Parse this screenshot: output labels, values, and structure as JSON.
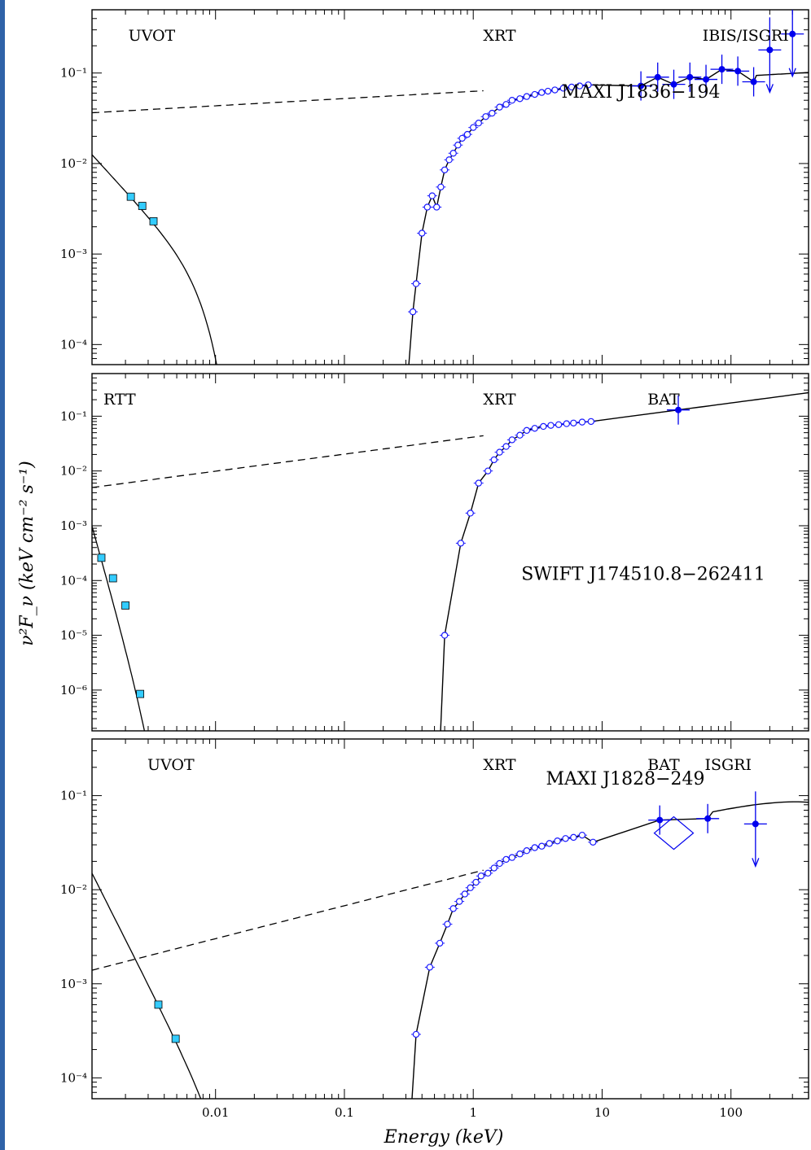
{
  "chart_data": {
    "type": "scatter",
    "xlabel": "Energy (keV)",
    "ylabel": "ν²F_ν (keV cm⁻² s⁻¹)",
    "xscale": "log",
    "yscale": "log",
    "xlim": [
      0.0011,
      400
    ],
    "x_ticks": [
      0.01,
      0.1,
      1,
      10,
      100
    ],
    "x_tick_labels": [
      "0.01",
      "0.1",
      "1",
      "10",
      "100"
    ],
    "colors": {
      "optical": "#33ccff",
      "xrt": "#1a1aff",
      "hard": "#0000ee",
      "model": "#000000",
      "sidebar": "#2f62a8"
    },
    "panels": [
      {
        "source": "MAXI J1836−194",
        "ylim": [
          6e-05,
          0.5
        ],
        "y_ticks": [
          0.1,
          0.01,
          0.001,
          0.0001
        ],
        "y_tick_labels": [
          "10⁻¹",
          "10⁻²",
          "10⁻³",
          "10⁻⁴"
        ],
        "instruments": [
          "UVOT",
          "XRT",
          "IBIS/ISGRI"
        ],
        "series": [
          {
            "name": "UVOT",
            "kind": "optical",
            "x": [
              0.0022,
              0.0027,
              0.0033
            ],
            "y": [
              0.0043,
              0.0034,
              0.0023
            ]
          },
          {
            "name": "XRT",
            "kind": "xrt",
            "x": [
              0.34,
              0.36,
              0.4,
              0.44,
              0.48,
              0.52,
              0.56,
              0.6,
              0.65,
              0.7,
              0.76,
              0.82,
              0.9,
              1.0,
              1.1,
              1.25,
              1.4,
              1.6,
              1.8,
              2.0,
              2.3,
              2.6,
              3.0,
              3.4,
              3.8,
              4.3,
              5.0,
              5.8,
              6.7,
              7.8
            ],
            "y": [
              0.00023,
              0.00047,
              0.0017,
              0.0033,
              0.0044,
              0.0033,
              0.0055,
              0.0085,
              0.011,
              0.013,
              0.016,
              0.019,
              0.021,
              0.025,
              0.028,
              0.033,
              0.036,
              0.042,
              0.045,
              0.05,
              0.052,
              0.055,
              0.058,
              0.061,
              0.063,
              0.065,
              0.068,
              0.07,
              0.072,
              0.074
            ]
          },
          {
            "name": "IBIS/ISGRI",
            "kind": "hard",
            "x": [
              20,
              27,
              36,
              48,
              64,
              85,
              113,
              150,
              200,
              300
            ],
            "y": [
              0.072,
              0.09,
              0.075,
              0.09,
              0.085,
              0.11,
              0.105,
              0.08,
              0.18,
              0.27
            ],
            "upper_limits_x": [
              200,
              300
            ]
          }
        ]
      },
      {
        "source": "SWIFT J174510.8−262411",
        "ylim": [
          1.8e-07,
          0.6
        ],
        "y_ticks": [
          0.1,
          0.01,
          0.001,
          0.0001,
          1e-05,
          1e-06
        ],
        "y_tick_labels": [
          "10⁻¹",
          "10⁻²",
          "10⁻³",
          "10⁻⁴",
          "10⁻⁵",
          "10⁻⁶"
        ],
        "instruments": [
          "RTT",
          "XRT",
          "BAT"
        ],
        "series": [
          {
            "name": "RTT",
            "kind": "optical",
            "x": [
              0.0013,
              0.0016,
              0.002,
              0.0026
            ],
            "y": [
              0.00026,
              0.00011,
              3.5e-05,
              8.5e-07
            ]
          },
          {
            "name": "XRT",
            "kind": "xrt",
            "x": [
              0.6,
              0.8,
              0.95,
              1.1,
              1.3,
              1.45,
              1.6,
              1.8,
              2.0,
              2.3,
              2.6,
              3.0,
              3.5,
              4.0,
              4.6,
              5.3,
              6.0,
              7.0,
              8.2
            ],
            "y": [
              1e-05,
              0.00048,
              0.0017,
              0.006,
              0.01,
              0.016,
              0.022,
              0.028,
              0.037,
              0.045,
              0.055,
              0.06,
              0.065,
              0.068,
              0.07,
              0.073,
              0.075,
              0.078,
              0.08
            ]
          },
          {
            "name": "BAT",
            "kind": "hard",
            "x": [
              39
            ],
            "y": [
              0.13
            ]
          }
        ]
      },
      {
        "source": "MAXI J1828−249",
        "ylim": [
          6e-05,
          0.4
        ],
        "y_ticks": [
          0.1,
          0.01,
          0.001,
          0.0001
        ],
        "y_tick_labels": [
          "10⁻¹",
          "10⁻²",
          "10⁻³",
          "10⁻⁴"
        ],
        "instruments": [
          "UVOT",
          "XRT",
          "BAT",
          "ISGRI"
        ],
        "series": [
          {
            "name": "UVOT",
            "kind": "optical",
            "x": [
              0.0036,
              0.0049
            ],
            "y": [
              0.0006,
              0.00026
            ]
          },
          {
            "name": "XRT",
            "kind": "xrt",
            "x": [
              0.36,
              0.46,
              0.55,
              0.63,
              0.7,
              0.78,
              0.86,
              0.95,
              1.05,
              1.15,
              1.3,
              1.45,
              1.6,
              1.8,
              2.0,
              2.3,
              2.6,
              3.0,
              3.4,
              3.9,
              4.5,
              5.2,
              6.0,
              7.0,
              8.5
            ],
            "y": [
              0.00029,
              0.0015,
              0.0027,
              0.0043,
              0.0063,
              0.0075,
              0.009,
              0.0105,
              0.012,
              0.014,
              0.015,
              0.017,
              0.019,
              0.021,
              0.022,
              0.024,
              0.026,
              0.028,
              0.029,
              0.031,
              0.033,
              0.035,
              0.036,
              0.038,
              0.032
            ]
          },
          {
            "name": "BAT",
            "kind": "hard",
            "x": [
              28,
              66
            ],
            "y": [
              0.055,
              0.057
            ]
          },
          {
            "name": "ISGRI",
            "kind": "hard",
            "x": [
              155
            ],
            "y": [
              0.05
            ],
            "upper_limits_x": [
              155
            ],
            "diamond_x": 36,
            "diamond_y": 0.04
          }
        ]
      }
    ]
  }
}
